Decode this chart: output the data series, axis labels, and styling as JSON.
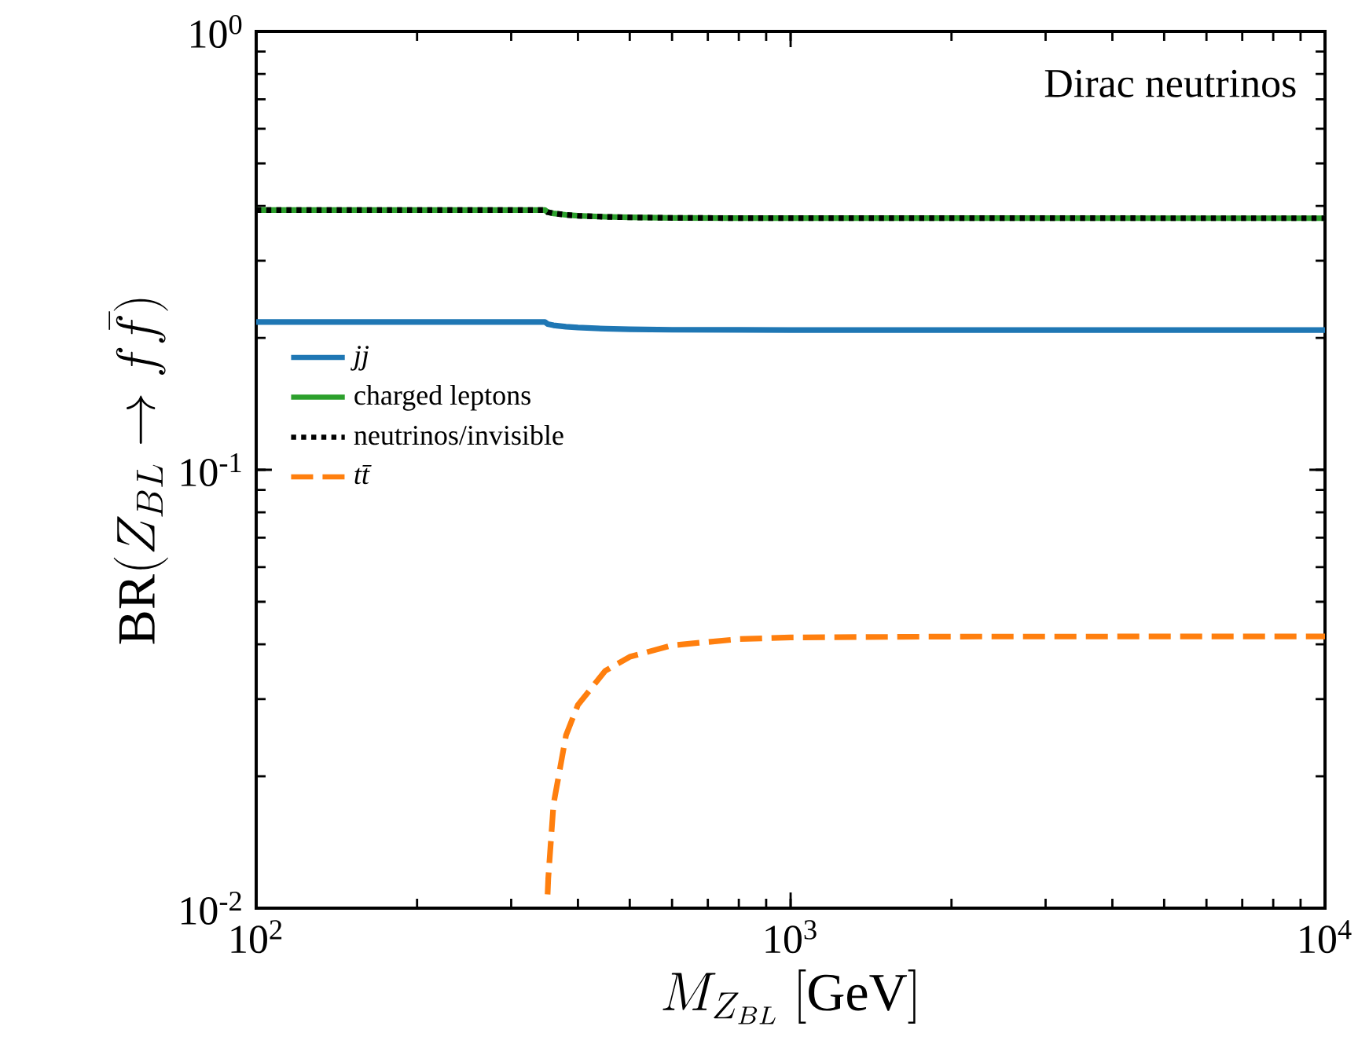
{
  "chart_data": {
    "type": "line",
    "xlabel": "M_{Z_{BL}}\\ [\\mathrm{GeV}]",
    "ylabel": "\\mathrm{BR}(Z_{BL}\\to f\\bar{f})",
    "annotations": [
      "Dirac neutrinos"
    ],
    "log": "xy",
    "xlim": [
      100,
      10000
    ],
    "ylim": [
      0.01,
      1
    ],
    "xticks": [
      {
        "value": 100,
        "label": "10$^{2}$"
      },
      {
        "value": 1000,
        "label": "10$^{3}$"
      },
      {
        "value": 10000,
        "label": "10$^{4}$"
      }
    ],
    "yticks": [
      {
        "value": 0.01,
        "label": "10$^{-2}$"
      },
      {
        "value": 0.1,
        "label": "10$^{-1}$"
      },
      {
        "value": 1,
        "label": "10$^{0}$"
      }
    ],
    "grid": false,
    "legend": "left",
    "marker": "none",
    "series": [
      {
        "name": "*jj*",
        "color": "#1f77b4",
        "line_style": "solid",
        "x": [
          100,
          347,
          351,
          360,
          380,
          400,
          450,
          500,
          600,
          800,
          1000,
          10000
        ],
        "values": [
          0.2174,
          0.2174,
          0.2151,
          0.2136,
          0.212,
          0.2111,
          0.2098,
          0.2092,
          0.2087,
          0.2085,
          0.2084,
          0.2083
        ]
      },
      {
        "name": "charged leptons",
        "color": "#2ca02c",
        "line_style": "solid",
        "x": [
          100,
          347,
          351,
          360,
          380,
          400,
          450,
          500,
          600,
          800,
          1000,
          10000
        ],
        "values": [
          0.3913,
          0.3913,
          0.3871,
          0.3846,
          0.3816,
          0.3799,
          0.3777,
          0.3766,
          0.3757,
          0.3752,
          0.3751,
          0.375
        ]
      },
      {
        "name": "neutrinos/invisible",
        "color": "#000000",
        "line_style": "dotted",
        "x": [
          100,
          347,
          351,
          360,
          380,
          400,
          450,
          500,
          600,
          800,
          1000,
          10000
        ],
        "values": [
          0.3913,
          0.3913,
          0.3871,
          0.3846,
          0.3816,
          0.3799,
          0.3777,
          0.3766,
          0.3757,
          0.3752,
          0.3751,
          0.375
        ]
      },
      {
        "name": "*tt̄*",
        "color": "#ff7f0e",
        "line_style": "dashed",
        "x": [
          351,
          352,
          360,
          380,
          400,
          450,
          500,
          600,
          800,
          1000,
          2000,
          10000
        ],
        "values": [
          0.01075,
          0.0117,
          0.01725,
          0.0248,
          0.0291,
          0.0348,
          0.03745,
          0.03978,
          0.0411,
          0.04145,
          0.04165,
          0.04167
        ]
      }
    ]
  }
}
